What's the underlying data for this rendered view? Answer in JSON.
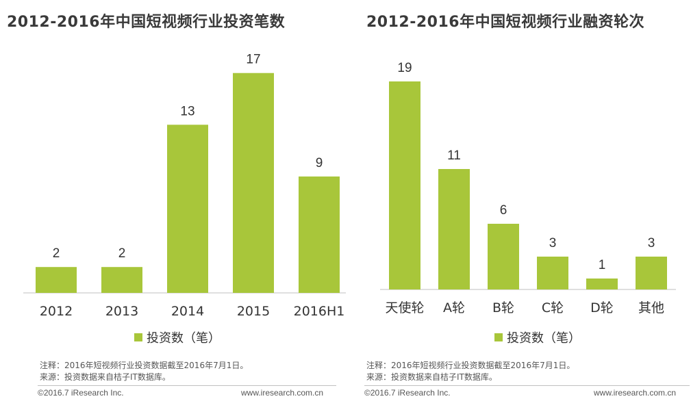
{
  "colors": {
    "bar": "#a8c63a",
    "axis": "#bfbfbf",
    "text": "#333333"
  },
  "left": {
    "title": "2012-2016年中国短视频行业投资笔数",
    "legend": "投资数（笔）",
    "note1": "注释：2016年短视频行业投资数据截至2016年7月1日。",
    "note2": "来源：投资数据来自桔子IT数据库。",
    "copyright": "©2016.7 iResearch Inc.",
    "site": "www.iresearch.com.cn"
  },
  "right": {
    "title": "2012-2016年中国短视频行业融资轮次",
    "legend": "投资数（笔）",
    "note1": "注释：2016年短视频行业投资数据截至2016年7月1日。",
    "note2": "来源：投资数据来自桔子IT数据库。",
    "copyright": "©2016.7 iResearch Inc.",
    "site": "www.iresearch.com.cn"
  },
  "chart_data": [
    {
      "type": "bar",
      "title": "2012-2016年中国短视频行业投资笔数",
      "categories": [
        "2012",
        "2013",
        "2014",
        "2015",
        "2016H1"
      ],
      "series": [
        {
          "name": "投资数（笔）",
          "values": [
            2,
            2,
            13,
            17,
            9
          ]
        }
      ],
      "ylim": [
        0,
        20
      ],
      "grid": false,
      "legend": "bottom"
    },
    {
      "type": "bar",
      "title": "2012-2016年中国短视频行业融资轮次",
      "categories": [
        "天使轮",
        "A轮",
        "B轮",
        "C轮",
        "D轮",
        "其他"
      ],
      "series": [
        {
          "name": "投资数（笔）",
          "values": [
            19,
            11,
            6,
            3,
            1,
            3
          ]
        }
      ],
      "ylim": [
        0,
        20
      ],
      "grid": false,
      "legend": "bottom"
    }
  ]
}
